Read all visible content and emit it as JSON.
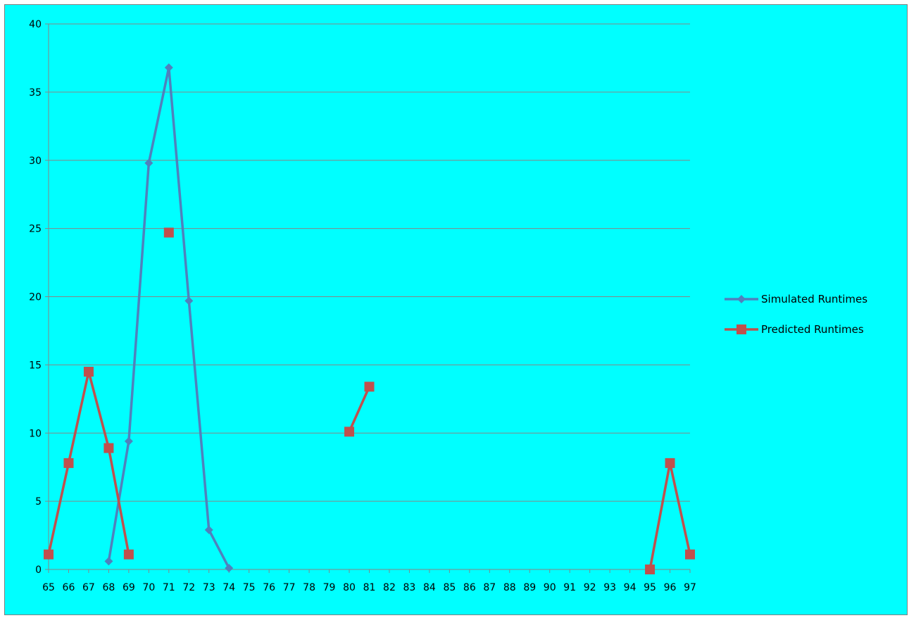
{
  "chart_data": {
    "type": "line",
    "x": [
      65,
      66,
      67,
      68,
      69,
      70,
      71,
      72,
      73,
      74,
      75,
      76,
      77,
      78,
      79,
      80,
      81,
      82,
      83,
      84,
      85,
      86,
      87,
      88,
      89,
      90,
      91,
      92,
      93,
      94,
      95,
      96,
      97
    ],
    "ylim": [
      0,
      40
    ],
    "yticks": [
      0,
      5,
      10,
      15,
      20,
      25,
      30,
      35,
      40
    ],
    "grid": true,
    "legend_position": "right",
    "series": [
      {
        "name": "Simulated Runtimes",
        "color": "#4f81bd",
        "marker": "diamond",
        "values": [
          null,
          null,
          null,
          0.6,
          9.4,
          29.8,
          36.8,
          19.7,
          2.9,
          0.1,
          null,
          null,
          null,
          null,
          null,
          null,
          null,
          null,
          null,
          null,
          null,
          null,
          null,
          null,
          null,
          null,
          null,
          null,
          null,
          null,
          null,
          null,
          null
        ]
      },
      {
        "name": "Predicted Runtimes",
        "color": "#c0504d",
        "marker": "square",
        "values": [
          1.1,
          7.8,
          14.5,
          8.9,
          1.1,
          null,
          24.7,
          null,
          null,
          null,
          null,
          null,
          null,
          null,
          null,
          10.1,
          13.4,
          null,
          null,
          null,
          null,
          null,
          null,
          null,
          null,
          null,
          null,
          null,
          null,
          null,
          0.0,
          7.8,
          1.1
        ]
      }
    ]
  }
}
